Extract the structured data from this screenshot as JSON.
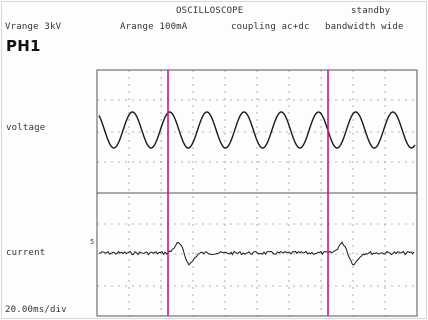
{
  "header": {
    "title": "OSCILLOSCOPE",
    "status": "standby",
    "vrange": "Vrange 3kV",
    "arange": "Arange 100mA",
    "coupling": "coupling ac+dc",
    "bandwidth": "bandwidth wide"
  },
  "channel": "PH1",
  "voltage_label": "voltage",
  "current_label": "current",
  "timebase": "20.00ms/div",
  "current_scale_mark": "5",
  "colors": {
    "trace": "#1a1a1a",
    "cursor": "#d4147c",
    "grid": "#9a9a9a",
    "frame": "#555555"
  }
}
